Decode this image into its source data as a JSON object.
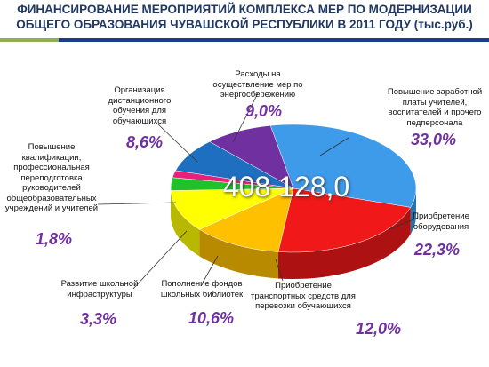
{
  "chart_data": {
    "type": "pie",
    "title": "ФИНАНСИРОВАНИЕ МЕРОПРИЯТИЙ КОМПЛЕКСА МЕР ПО МОДЕРНИЗАЦИИ ОБЩЕГО ОБРАЗОВАНИЯ ЧУВАШСКОЙ РЕСПУБЛИКИ В 2011 ГОДУ (тыс.руб.)",
    "center_label": "408 128,0",
    "categories": [
      "Повышение заработной платы учителей, воспитателей и прочего педперсонала",
      "Приобретение оборудования",
      "Приобретение транспортных средств для перевозки обучающихся",
      "Пополнение фондов школьных библиотек",
      "Развитие школьной инфраструктуры",
      "Повышение квалификации, профессиональная переподготовка руководителей общеобразовательных учреждений и учителей",
      "Организация дистанционного обучения для обучающихся",
      "Расходы на осуществление мер по энергосбережению"
    ],
    "values": [
      33.0,
      22.3,
      12.0,
      10.6,
      3.3,
      1.8,
      8.6,
      9.0
    ],
    "value_labels": [
      "33,0%",
      "22,3%",
      "12,0%",
      "10,6%",
      "3,3%",
      "1,8%",
      "8,6%",
      "9,0%"
    ],
    "colors": [
      "#3d9be9",
      "#f01818",
      "#ffc000",
      "#ffff00",
      "#22c02a",
      "#e8207a",
      "#1f6fc0",
      "#7030a0"
    ]
  }
}
